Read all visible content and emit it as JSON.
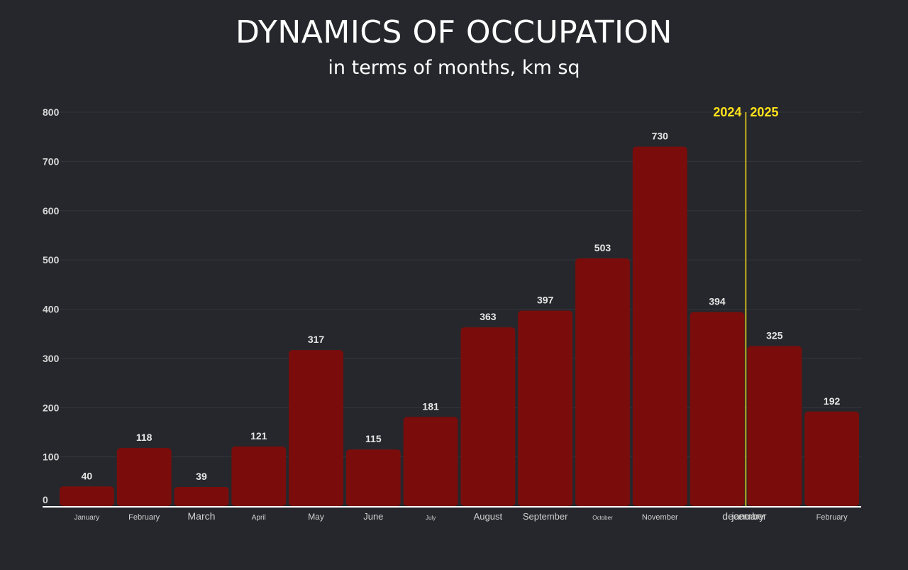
{
  "header": {
    "title": "DYNAMICS OF OCCUPATION",
    "subtitle": "in terms of months, km sq"
  },
  "colors": {
    "background": "#26272c",
    "bar": "#7a0d0b",
    "divider": "#ffe21a",
    "axis": "#ffffff"
  },
  "chart_data": {
    "type": "bar",
    "title": "DYNAMICS OF OCCUPATION",
    "subtitle": "in terms of months, km sq",
    "xlabel": "",
    "ylabel": "",
    "ylim": [
      0,
      800
    ],
    "yticks": [
      0,
      100,
      200,
      300,
      400,
      500,
      600,
      700,
      800
    ],
    "grid": true,
    "categories": [
      "January",
      "February",
      "March",
      "April",
      "May",
      "June",
      "July",
      "August",
      "September",
      "October",
      "November",
      "december",
      "january",
      "February"
    ],
    "values": [
      40,
      118,
      39,
      121,
      317,
      115,
      181,
      363,
      397,
      503,
      730,
      394,
      325,
      192
    ],
    "year_divider": {
      "left_label": "2024",
      "right_label": "2025",
      "after_category": "december"
    }
  }
}
